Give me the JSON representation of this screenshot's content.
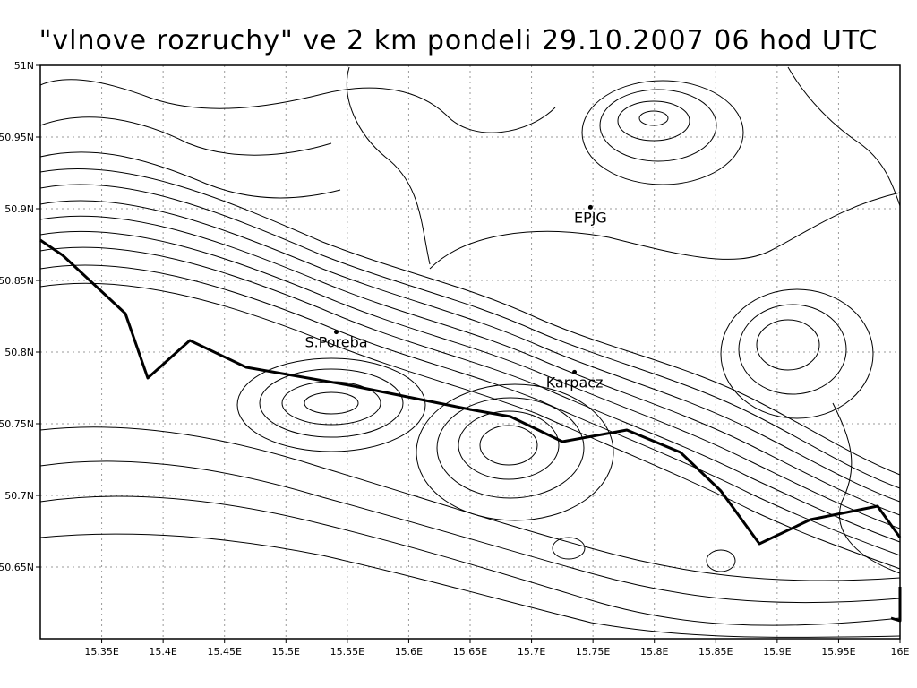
{
  "title": "\"vlnove rozruchy\" ve 2 km pondeli 29.10.2007 06 hod UTC",
  "map": {
    "lon_range": [
      15.3,
      16.0
    ],
    "lat_range": [
      50.6,
      51.0
    ],
    "x_ticks": [
      "15.35E",
      "15.4E",
      "15.45E",
      "15.5E",
      "15.55E",
      "15.6E",
      "15.65E",
      "15.7E",
      "15.75E",
      "15.8E",
      "15.85E",
      "15.9E",
      "15.95E",
      "16E"
    ],
    "y_ticks": [
      "51N",
      "50.95N",
      "50.9N",
      "50.85N",
      "50.8N",
      "50.75N",
      "50.7N",
      "50.65N"
    ],
    "grid": true,
    "places": [
      {
        "name": "EPJG",
        "lon": 15.748,
        "lat": 50.901
      },
      {
        "name": "S.Poreba",
        "lon": 15.541,
        "lat": 50.814
      },
      {
        "name": "Karpacz",
        "lon": 15.735,
        "lat": 50.786
      }
    ]
  }
}
